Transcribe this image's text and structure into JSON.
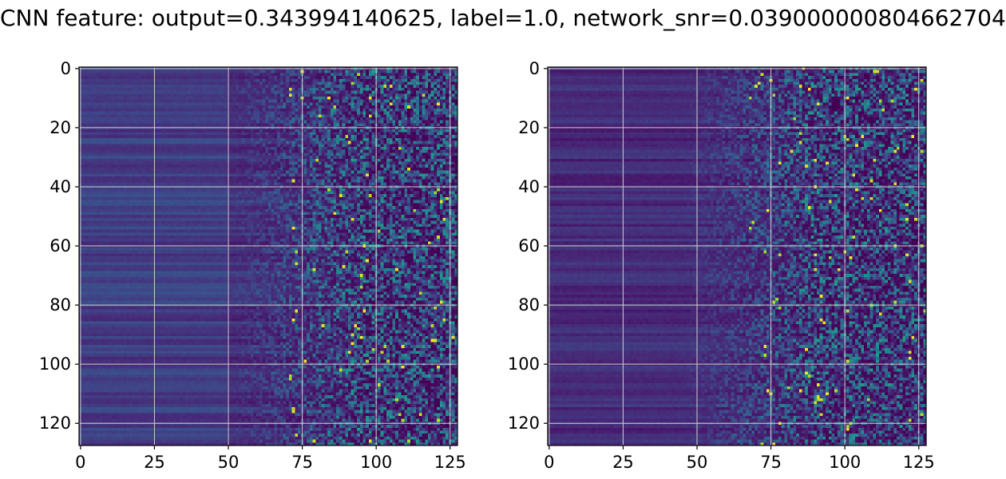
{
  "figure": {
    "title": "CNN feature: output=0.343994140625, label=1.0, network_snr=0.039000000804662704"
  },
  "colors": {
    "colormap": "viridis",
    "grid": "#d0d0d0",
    "axes": "#000000"
  },
  "chart_data": [
    {
      "type": "heatmap",
      "colormap": "viridis",
      "grid": true,
      "xlim": [
        -0.5,
        127.5
      ],
      "ylim": [
        127.5,
        -0.5
      ],
      "xticks": [
        0,
        25,
        50,
        75,
        100,
        125
      ],
      "yticks": [
        0,
        20,
        40,
        60,
        80,
        100,
        120
      ],
      "xtick_labels": [
        "0",
        "25",
        "50",
        "75",
        "100",
        "125"
      ],
      "ytick_labels": [
        "0",
        "20",
        "40",
        "60",
        "80",
        "100",
        "120"
      ],
      "grid_size": [
        128,
        128
      ],
      "value_range": [
        0,
        1
      ],
      "description": "low uniform values for columns 0-50, gradually increasing noise with bright speckles in columns 75-127"
    },
    {
      "type": "heatmap",
      "colormap": "viridis",
      "grid": true,
      "xlim": [
        -0.5,
        127.5
      ],
      "ylim": [
        127.5,
        -0.5
      ],
      "xticks": [
        0,
        25,
        50,
        75,
        100,
        125
      ],
      "yticks": [
        0,
        20,
        40,
        60,
        80,
        100,
        120
      ],
      "xtick_labels": [
        "0",
        "25",
        "50",
        "75",
        "100",
        "125"
      ],
      "ytick_labels": [
        "0",
        "20",
        "40",
        "60",
        "80",
        "100",
        "120"
      ],
      "grid_size": [
        128,
        128
      ],
      "value_range": [
        0,
        1
      ],
      "description": "dark horizontal bands for columns 0-50, brighter speckled noise for columns 70-127"
    }
  ]
}
